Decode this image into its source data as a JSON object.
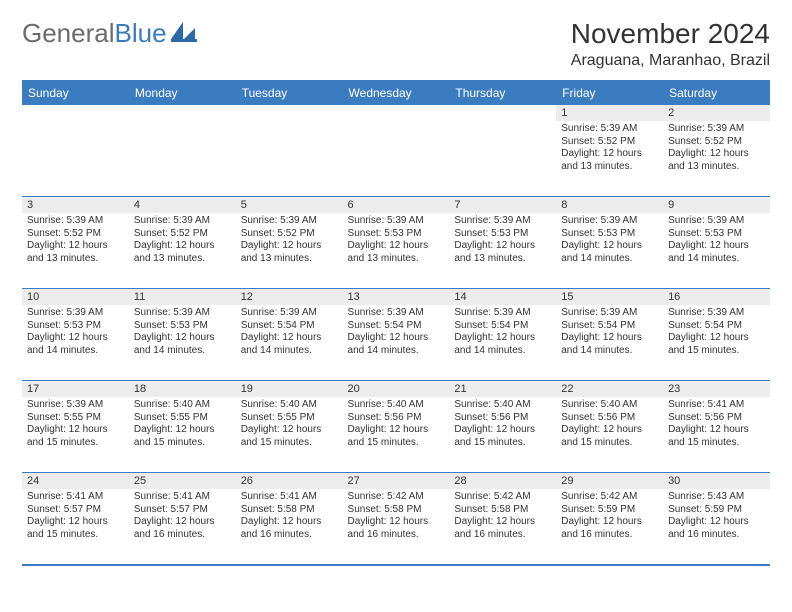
{
  "logo": {
    "text_gray": "General",
    "text_blue": "Blue"
  },
  "title": "November 2024",
  "location": "Araguana, Maranhao, Brazil",
  "header_bg": "#3b7bbf",
  "header_fg": "#ffffff",
  "daynum_bg": "#ececec",
  "border_color": "#3b7bbf",
  "weekdays": [
    "Sunday",
    "Monday",
    "Tuesday",
    "Wednesday",
    "Thursday",
    "Friday",
    "Saturday"
  ],
  "weeks": [
    [
      null,
      null,
      null,
      null,
      null,
      {
        "n": "1",
        "sr": "5:39 AM",
        "ss": "5:52 PM",
        "dl": "12 hours and 13 minutes."
      },
      {
        "n": "2",
        "sr": "5:39 AM",
        "ss": "5:52 PM",
        "dl": "12 hours and 13 minutes."
      }
    ],
    [
      {
        "n": "3",
        "sr": "5:39 AM",
        "ss": "5:52 PM",
        "dl": "12 hours and 13 minutes."
      },
      {
        "n": "4",
        "sr": "5:39 AM",
        "ss": "5:52 PM",
        "dl": "12 hours and 13 minutes."
      },
      {
        "n": "5",
        "sr": "5:39 AM",
        "ss": "5:52 PM",
        "dl": "12 hours and 13 minutes."
      },
      {
        "n": "6",
        "sr": "5:39 AM",
        "ss": "5:53 PM",
        "dl": "12 hours and 13 minutes."
      },
      {
        "n": "7",
        "sr": "5:39 AM",
        "ss": "5:53 PM",
        "dl": "12 hours and 13 minutes."
      },
      {
        "n": "8",
        "sr": "5:39 AM",
        "ss": "5:53 PM",
        "dl": "12 hours and 14 minutes."
      },
      {
        "n": "9",
        "sr": "5:39 AM",
        "ss": "5:53 PM",
        "dl": "12 hours and 14 minutes."
      }
    ],
    [
      {
        "n": "10",
        "sr": "5:39 AM",
        "ss": "5:53 PM",
        "dl": "12 hours and 14 minutes."
      },
      {
        "n": "11",
        "sr": "5:39 AM",
        "ss": "5:53 PM",
        "dl": "12 hours and 14 minutes."
      },
      {
        "n": "12",
        "sr": "5:39 AM",
        "ss": "5:54 PM",
        "dl": "12 hours and 14 minutes."
      },
      {
        "n": "13",
        "sr": "5:39 AM",
        "ss": "5:54 PM",
        "dl": "12 hours and 14 minutes."
      },
      {
        "n": "14",
        "sr": "5:39 AM",
        "ss": "5:54 PM",
        "dl": "12 hours and 14 minutes."
      },
      {
        "n": "15",
        "sr": "5:39 AM",
        "ss": "5:54 PM",
        "dl": "12 hours and 14 minutes."
      },
      {
        "n": "16",
        "sr": "5:39 AM",
        "ss": "5:54 PM",
        "dl": "12 hours and 15 minutes."
      }
    ],
    [
      {
        "n": "17",
        "sr": "5:39 AM",
        "ss": "5:55 PM",
        "dl": "12 hours and 15 minutes."
      },
      {
        "n": "18",
        "sr": "5:40 AM",
        "ss": "5:55 PM",
        "dl": "12 hours and 15 minutes."
      },
      {
        "n": "19",
        "sr": "5:40 AM",
        "ss": "5:55 PM",
        "dl": "12 hours and 15 minutes."
      },
      {
        "n": "20",
        "sr": "5:40 AM",
        "ss": "5:56 PM",
        "dl": "12 hours and 15 minutes."
      },
      {
        "n": "21",
        "sr": "5:40 AM",
        "ss": "5:56 PM",
        "dl": "12 hours and 15 minutes."
      },
      {
        "n": "22",
        "sr": "5:40 AM",
        "ss": "5:56 PM",
        "dl": "12 hours and 15 minutes."
      },
      {
        "n": "23",
        "sr": "5:41 AM",
        "ss": "5:56 PM",
        "dl": "12 hours and 15 minutes."
      }
    ],
    [
      {
        "n": "24",
        "sr": "5:41 AM",
        "ss": "5:57 PM",
        "dl": "12 hours and 15 minutes."
      },
      {
        "n": "25",
        "sr": "5:41 AM",
        "ss": "5:57 PM",
        "dl": "12 hours and 16 minutes."
      },
      {
        "n": "26",
        "sr": "5:41 AM",
        "ss": "5:58 PM",
        "dl": "12 hours and 16 minutes."
      },
      {
        "n": "27",
        "sr": "5:42 AM",
        "ss": "5:58 PM",
        "dl": "12 hours and 16 minutes."
      },
      {
        "n": "28",
        "sr": "5:42 AM",
        "ss": "5:58 PM",
        "dl": "12 hours and 16 minutes."
      },
      {
        "n": "29",
        "sr": "5:42 AM",
        "ss": "5:59 PM",
        "dl": "12 hours and 16 minutes."
      },
      {
        "n": "30",
        "sr": "5:43 AM",
        "ss": "5:59 PM",
        "dl": "12 hours and 16 minutes."
      }
    ]
  ],
  "labels": {
    "sunrise": "Sunrise:",
    "sunset": "Sunset:",
    "daylight": "Daylight:"
  }
}
